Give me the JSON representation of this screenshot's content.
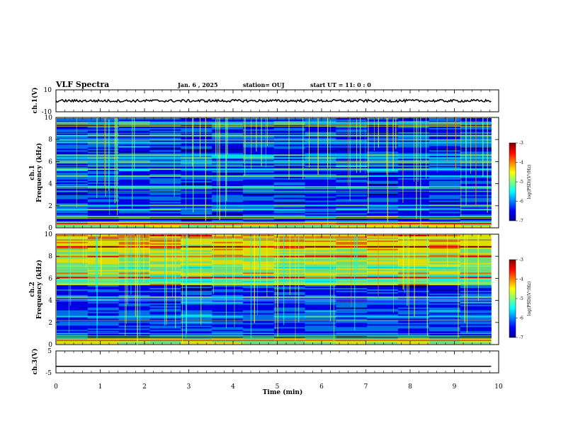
{
  "header": {
    "title": "VLF Spectra",
    "date": "Jan. 6 , 2025",
    "station": "station= OUJ",
    "start": "start  UT =   11: 0  : 0"
  },
  "colors": {
    "colormap": [
      "#00008f",
      "#0000ff",
      "#0080ff",
      "#00ffff",
      "#80ff80",
      "#ffff00",
      "#ff8000",
      "#ff0000",
      "#800000"
    ],
    "background": "#000033",
    "trace": "#000000"
  },
  "chart_data": [
    {
      "type": "line",
      "name": "ch1-waveform",
      "ylabel": "ch.1(V)",
      "yticks": [
        "10",
        "-10"
      ],
      "ylim": [
        -10,
        10
      ],
      "x_range_min": [
        0,
        9.83
      ],
      "level": 0
    },
    {
      "type": "heatmap",
      "name": "ch1-spectrogram",
      "ylabel_line1": "ch.1",
      "ylabel_line2": "Frequency (kHz)",
      "yticks": [
        "0",
        "2",
        "4",
        "6",
        "8",
        "10"
      ],
      "ylim": [
        0,
        10
      ],
      "x_range_min": [
        0,
        9.83
      ],
      "colorbar": {
        "label": "log(PSD)(V²/Hz)",
        "ticks": [
          "-3",
          "-4",
          "-5",
          "-6",
          "-7"
        ],
        "range": [
          -7,
          -3
        ]
      }
    },
    {
      "type": "heatmap",
      "name": "ch2-spectrogram",
      "ylabel_line1": "ch.2",
      "ylabel_line2": "Frequency (kHz)",
      "yticks": [
        "0",
        "2",
        "4",
        "6",
        "8",
        "10"
      ],
      "ylim": [
        0,
        10
      ],
      "x_range_min": [
        0,
        9.83
      ],
      "colorbar": {
        "label": "log(PSD)(V²/Hz)",
        "ticks": [
          "-3",
          "-4",
          "-5",
          "-6",
          "-7"
        ],
        "range": [
          -7,
          -3
        ]
      }
    },
    {
      "type": "line",
      "name": "ch3-waveform",
      "ylabel": "ch.3(V)",
      "yticks": [
        "5",
        "-5"
      ],
      "ylim": [
        -5,
        5
      ],
      "x_range_min": [
        0,
        9.83
      ],
      "level": -2
    }
  ],
  "xaxis": {
    "label": "Time (min)",
    "ticks": [
      "0",
      "1",
      "2",
      "3",
      "4",
      "5",
      "6",
      "7",
      "8",
      "9",
      "10"
    ],
    "range": [
      0,
      10
    ]
  }
}
